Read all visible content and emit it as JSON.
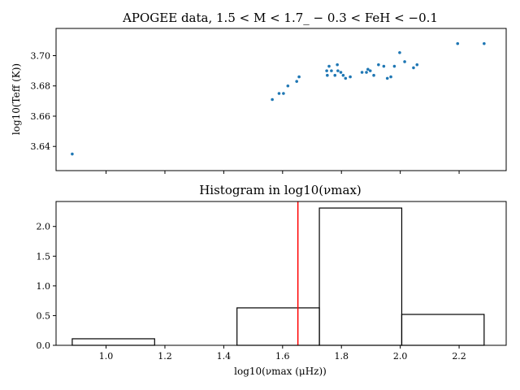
{
  "chart_data": [
    {
      "type": "scatter",
      "title": "APOGEE data, 1.5 < M < 1.7_ − 0.3 < FeH < −0.1",
      "ylabel": "log10(Teff (K))",
      "xlabel": "",
      "xlim": [
        0.83,
        2.36
      ],
      "ylim": [
        3.624,
        3.718
      ],
      "grid": false,
      "color": "#1f77b4",
      "xticks": [
        1.0,
        1.2,
        1.4,
        1.6,
        1.8,
        2.0,
        2.2
      ],
      "yticks": [
        "3.64",
        "3.66",
        "3.68",
        "3.70"
      ],
      "ytick_values": [
        3.64,
        3.66,
        3.68,
        3.7
      ],
      "points": [
        {
          "x": 0.885,
          "y": 3.635
        },
        {
          "x": 1.565,
          "y": 3.671
        },
        {
          "x": 1.588,
          "y": 3.675
        },
        {
          "x": 1.603,
          "y": 3.675
        },
        {
          "x": 1.618,
          "y": 3.68
        },
        {
          "x": 1.648,
          "y": 3.683
        },
        {
          "x": 1.656,
          "y": 3.686
        },
        {
          "x": 1.75,
          "y": 3.69
        },
        {
          "x": 1.752,
          "y": 3.687
        },
        {
          "x": 1.758,
          "y": 3.693
        },
        {
          "x": 1.766,
          "y": 3.69
        },
        {
          "x": 1.778,
          "y": 3.687
        },
        {
          "x": 1.786,
          "y": 3.694
        },
        {
          "x": 1.788,
          "y": 3.69
        },
        {
          "x": 1.798,
          "y": 3.689
        },
        {
          "x": 1.806,
          "y": 3.687
        },
        {
          "x": 1.814,
          "y": 3.685
        },
        {
          "x": 1.83,
          "y": 3.686
        },
        {
          "x": 1.87,
          "y": 3.689
        },
        {
          "x": 1.885,
          "y": 3.689
        },
        {
          "x": 1.89,
          "y": 3.691
        },
        {
          "x": 1.898,
          "y": 3.69
        },
        {
          "x": 1.91,
          "y": 3.687
        },
        {
          "x": 1.926,
          "y": 3.694
        },
        {
          "x": 1.944,
          "y": 3.693
        },
        {
          "x": 1.956,
          "y": 3.685
        },
        {
          "x": 1.968,
          "y": 3.686
        },
        {
          "x": 1.98,
          "y": 3.693
        },
        {
          "x": 1.998,
          "y": 3.702
        },
        {
          "x": 2.015,
          "y": 3.696
        },
        {
          "x": 2.045,
          "y": 3.692
        },
        {
          "x": 2.057,
          "y": 3.694
        },
        {
          "x": 2.195,
          "y": 3.708
        },
        {
          "x": 2.285,
          "y": 3.708
        }
      ]
    },
    {
      "type": "histogram",
      "title": "Histogram in log10(νmax)",
      "xlabel": "log10(νmax (μHz))",
      "ylabel": "",
      "xlim": [
        0.83,
        2.36
      ],
      "ylim": [
        0,
        2.42
      ],
      "grid": false,
      "xticks": [
        "1.0",
        "1.2",
        "1.4",
        "1.6",
        "1.8",
        "2.0",
        "2.2"
      ],
      "xtick_values": [
        1.0,
        1.2,
        1.4,
        1.6,
        1.8,
        2.0,
        2.2
      ],
      "yticks": [
        "0.0",
        "0.5",
        "1.0",
        "1.5",
        "2.0"
      ],
      "ytick_values": [
        0.0,
        0.5,
        1.0,
        1.5,
        2.0
      ],
      "bin_edges": [
        0.885,
        1.165,
        1.445,
        1.725,
        2.005,
        2.285
      ],
      "values": [
        0.11,
        0.0,
        0.63,
        2.31,
        0.52
      ],
      "vline": {
        "x": 1.652,
        "color": "#ff0000"
      },
      "edge_color": "#000000"
    }
  ]
}
